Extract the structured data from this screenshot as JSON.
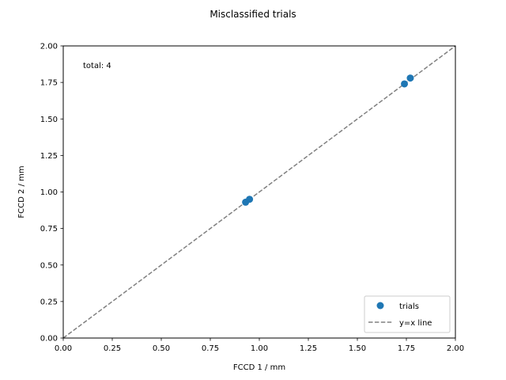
{
  "chart_data": {
    "type": "scatter",
    "title": "Misclassified trials",
    "xlabel": "FCCD 1 / mm",
    "ylabel": "FCCD 2 / mm",
    "xlim": [
      0,
      2
    ],
    "ylim": [
      0,
      2
    ],
    "xticks": [
      "0.00",
      "0.25",
      "0.50",
      "0.75",
      "1.00",
      "1.25",
      "1.50",
      "1.75",
      "2.00"
    ],
    "yticks": [
      "0.00",
      "0.25",
      "0.50",
      "0.75",
      "1.00",
      "1.25",
      "1.50",
      "1.75",
      "2.00"
    ],
    "annotation": "total: 4",
    "grid": false,
    "legend_position": "lower-right",
    "series": [
      {
        "name": "trials",
        "kind": "scatter",
        "color": "#1f77b4",
        "points": [
          {
            "x": 0.93,
            "y": 0.93
          },
          {
            "x": 0.95,
            "y": 0.95
          },
          {
            "x": 1.74,
            "y": 1.74
          },
          {
            "x": 1.77,
            "y": 1.78
          }
        ]
      },
      {
        "name": "y=x line",
        "kind": "line",
        "style": "dashed",
        "color": "#808080",
        "points": [
          {
            "x": 0,
            "y": 0
          },
          {
            "x": 2,
            "y": 2
          }
        ]
      }
    ]
  }
}
